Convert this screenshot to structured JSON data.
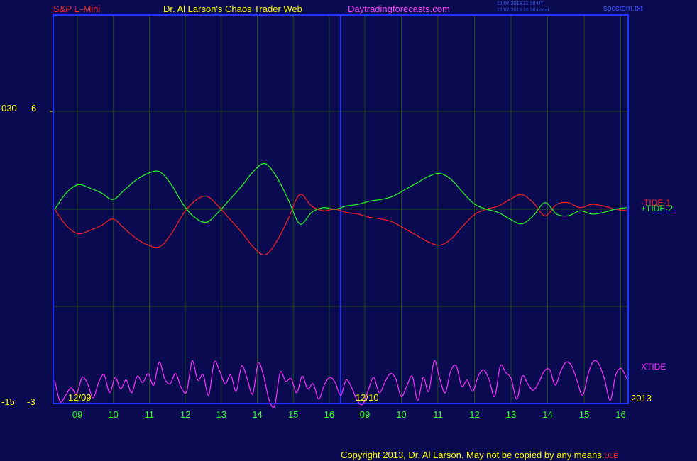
{
  "header": {
    "symbol": "S&P E-Mini",
    "author": "Dr. Al Larson's Chaos Trader Web",
    "site": "Daytradingforecasts.com",
    "timestamp_1": "12/07/2013 21:30 UT",
    "timestamp_2": "12/07/2013 16:30 Local",
    "filename": "spcctom.txt"
  },
  "footer": {
    "copyright": "Copyright 2013, Dr. Al Larson. May not be copied by any means.",
    "mark": "ULE"
  },
  "colors": {
    "background": "#0a0a50",
    "frame": "#2233ff",
    "grid": "#1e4a1e",
    "tide_minus": "#ff2020",
    "tide_plus": "#20ff20",
    "xtide": "#ff30ff",
    "axis_text": "#ffff00",
    "hour_text": "#30ff30",
    "symbol_text": "#ff3030",
    "site_text": "#ff44ff"
  },
  "chart_data": {
    "type": "line",
    "x_hour_labels": [
      "09",
      "10",
      "11",
      "12",
      "13",
      "14",
      "15",
      "16",
      "09",
      "10",
      "11",
      "12",
      "13",
      "14",
      "15",
      "16"
    ],
    "date_labels": [
      "12/09",
      "12/10"
    ],
    "year_label": "2013",
    "upper_axis": {
      "left_labels": {
        "top": "030",
        "bottom": "-15"
      },
      "right_labels": {
        "top": "6",
        "bottom": "-3"
      }
    },
    "series": [
      {
        "name": "-TIDE-1",
        "color": "#ff2020",
        "values": [
          0.0,
          -1.0,
          -1.5,
          -1.3,
          -1.0,
          -0.6,
          -1.2,
          -1.8,
          -2.2,
          -2.3,
          -1.5,
          -0.3,
          0.5,
          0.8,
          0.2,
          -0.6,
          -1.4,
          -2.3,
          -2.8,
          -2.0,
          -0.6,
          0.9,
          0.2,
          -0.1,
          0.0,
          -0.2,
          -0.3,
          -0.5,
          -0.6,
          -0.8,
          -1.2,
          -1.6,
          -2.0,
          -2.2,
          -1.8,
          -1.0,
          -0.3,
          0.0,
          0.2,
          0.6,
          0.9,
          0.4,
          -0.4,
          0.3,
          0.4,
          0.1,
          0.3,
          0.2,
          0.0,
          -0.1
        ]
      },
      {
        "name": "+TIDE-2",
        "color": "#20ff20",
        "values": [
          0.0,
          1.0,
          1.5,
          1.3,
          1.0,
          0.6,
          1.2,
          1.8,
          2.2,
          2.3,
          1.5,
          0.3,
          -0.5,
          -0.8,
          -0.2,
          0.6,
          1.4,
          2.3,
          2.8,
          2.0,
          0.6,
          -0.9,
          -0.2,
          0.1,
          0.0,
          0.2,
          0.3,
          0.5,
          0.6,
          0.8,
          1.2,
          1.6,
          2.0,
          2.2,
          1.8,
          1.0,
          0.3,
          0.0,
          -0.2,
          -0.6,
          -0.9,
          -0.4,
          0.4,
          -0.3,
          -0.4,
          -0.1,
          -0.3,
          -0.2,
          0.0,
          0.1
        ]
      },
      {
        "name": "XTIDE",
        "color": "#ff30ff",
        "values": [
          -0.6,
          -2.3,
          -1.8,
          -1.2,
          -1.7,
          -0.4,
          -0.9,
          -2.0,
          -0.8,
          -0.2,
          -1.6,
          -0.4,
          -1.3,
          -0.6,
          -1.6,
          -0.3,
          -0.8,
          -0.1,
          -1.0,
          0.8,
          -0.5,
          -0.9,
          -0.1,
          -1.2,
          -1.5,
          0.9,
          -0.6,
          -0.2,
          -1.8,
          0.8,
          0.1,
          -0.9,
          -0.2,
          -1.5,
          0.5,
          -0.5,
          -1.7,
          0.7,
          -0.3,
          -2.2,
          -2.6,
          0.0,
          -0.7,
          -0.5,
          -1.6,
          -0.3,
          -1.3,
          -0.9,
          -2.1,
          -1.0,
          -0.4,
          -0.8,
          -1.8,
          -0.6,
          -1.2,
          -2.2,
          -2.5,
          -1.4,
          -0.4,
          -1.6,
          -0.8,
          -0.1,
          -0.5,
          -1.9,
          -1.1,
          -0.3,
          -2.2,
          -0.4,
          -1.5,
          0.9,
          -0.5,
          -1.6,
          0.1,
          0.5,
          -1.1,
          -0.6,
          -1.5,
          -0.3,
          0.2,
          -0.6,
          -1.9,
          0.5,
          0.0,
          -0.5,
          -2.1,
          -0.3,
          -0.9,
          -1.4,
          -0.8,
          0.1,
          0.2,
          -1.0,
          0.1,
          0.8,
          0.5,
          -0.7,
          -1.8,
          -0.1,
          0.9,
          0.6,
          -0.6,
          -2.2,
          -0.2,
          0.3,
          -0.5
        ]
      }
    ],
    "ylim": [
      -3,
      6
    ],
    "grid": true
  }
}
